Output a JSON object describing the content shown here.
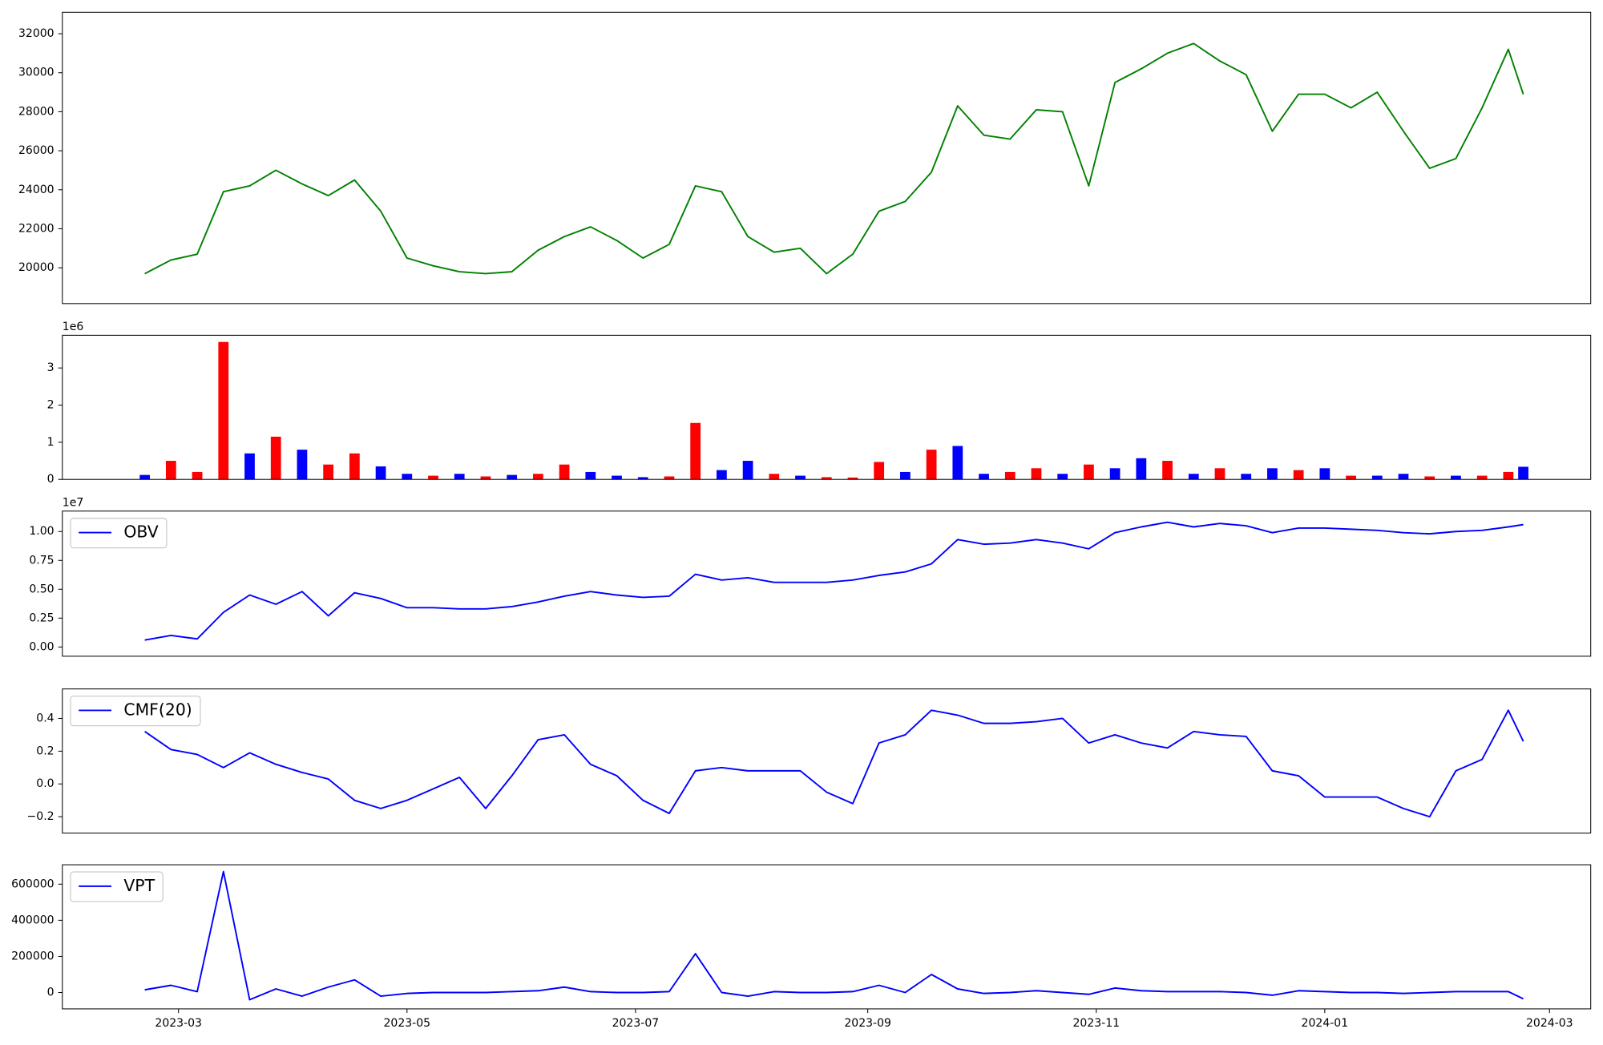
{
  "chart_data": [
    {
      "type": "line",
      "x": [
        "2023-02-20",
        "2023-02-27",
        "2023-03-06",
        "2023-03-13",
        "2023-03-20",
        "2023-03-27",
        "2023-04-03",
        "2023-04-10",
        "2023-04-17",
        "2023-04-24",
        "2023-05-01",
        "2023-05-08",
        "2023-05-15",
        "2023-05-22",
        "2023-05-29",
        "2023-06-05",
        "2023-06-12",
        "2023-06-19",
        "2023-06-26",
        "2023-07-03",
        "2023-07-10",
        "2023-07-17",
        "2023-07-24",
        "2023-07-31",
        "2023-08-07",
        "2023-08-14",
        "2023-08-21",
        "2023-08-28",
        "2023-09-04",
        "2023-09-11",
        "2023-09-18",
        "2023-09-25",
        "2023-10-02",
        "2023-10-09",
        "2023-10-16",
        "2023-10-23",
        "2023-10-30",
        "2023-11-06",
        "2023-11-13",
        "2023-11-20",
        "2023-11-27",
        "2023-12-04",
        "2023-12-11",
        "2023-12-18",
        "2023-12-25",
        "2024-01-01",
        "2024-01-08",
        "2024-01-15",
        "2024-01-22",
        "2024-01-29",
        "2024-02-05",
        "2024-02-12",
        "2024-02-19",
        "2024-02-23"
      ],
      "series": [
        {
          "color": "green",
          "values": [
            19700,
            20400,
            20700,
            23900,
            24200,
            25000,
            24300,
            23700,
            24500,
            22900,
            20500,
            20100,
            19800,
            19700,
            19800,
            20900,
            21600,
            22100,
            21400,
            20500,
            21200,
            24200,
            23900,
            21600,
            20800,
            21000,
            19700,
            20700,
            22900,
            23400,
            24900,
            28300,
            26800,
            26600,
            28100,
            28000,
            24200,
            29500,
            30200,
            31000,
            31500,
            30600,
            29900,
            27000,
            28900,
            28900,
            28200,
            29000,
            27000,
            25100,
            25600,
            28200,
            31200,
            28900
          ]
        }
      ],
      "xlim": [
        "2023-01-29",
        "2024-03-12"
      ],
      "ylim": [
        18165,
        33100
      ],
      "yticks": [
        20000,
        22000,
        24000,
        26000,
        28000,
        30000,
        32000
      ]
    },
    {
      "type": "bar",
      "x": [
        "2023-02-20",
        "2023-02-27",
        "2023-03-06",
        "2023-03-13",
        "2023-03-20",
        "2023-03-27",
        "2023-04-03",
        "2023-04-10",
        "2023-04-17",
        "2023-04-24",
        "2023-05-01",
        "2023-05-08",
        "2023-05-15",
        "2023-05-22",
        "2023-05-29",
        "2023-06-05",
        "2023-06-12",
        "2023-06-19",
        "2023-06-26",
        "2023-07-03",
        "2023-07-10",
        "2023-07-17",
        "2023-07-24",
        "2023-07-31",
        "2023-08-07",
        "2023-08-14",
        "2023-08-21",
        "2023-08-28",
        "2023-09-04",
        "2023-09-11",
        "2023-09-18",
        "2023-09-25",
        "2023-10-02",
        "2023-10-09",
        "2023-10-16",
        "2023-10-23",
        "2023-10-30",
        "2023-11-06",
        "2023-11-13",
        "2023-11-20",
        "2023-11-27",
        "2023-12-04",
        "2023-12-11",
        "2023-12-18",
        "2023-12-25",
        "2024-01-01",
        "2024-01-08",
        "2024-01-15",
        "2024-01-22",
        "2024-01-29",
        "2024-02-05",
        "2024-02-12",
        "2024-02-19",
        "2024-02-23"
      ],
      "series": [
        {
          "values": [
            120000,
            500000,
            200000,
            3700000,
            700000,
            1150000,
            800000,
            400000,
            700000,
            350000,
            150000,
            100000,
            150000,
            80000,
            120000,
            150000,
            400000,
            200000,
            100000,
            60000,
            80000,
            1520000,
            250000,
            500000,
            150000,
            100000,
            60000,
            50000,
            470000,
            200000,
            800000,
            900000,
            150000,
            200000,
            300000,
            150000,
            400000,
            300000,
            570000,
            500000,
            150000,
            300000,
            150000,
            300000,
            250000,
            300000,
            100000,
            100000,
            150000,
            80000,
            100000,
            100000,
            200000,
            340000
          ],
          "colors": [
            "blue",
            "red",
            "red",
            "red",
            "blue",
            "red",
            "blue",
            "red",
            "red",
            "blue",
            "blue",
            "red",
            "blue",
            "red",
            "blue",
            "red",
            "red",
            "blue",
            "blue",
            "blue",
            "red",
            "red",
            "blue",
            "blue",
            "red",
            "blue",
            "red",
            "red",
            "red",
            "blue",
            "red",
            "blue",
            "blue",
            "red",
            "red",
            "blue",
            "red",
            "blue",
            "blue",
            "red",
            "blue",
            "red",
            "blue",
            "blue",
            "red",
            "blue",
            "red",
            "blue",
            "blue",
            "red",
            "blue",
            "red",
            "red",
            "blue"
          ]
        }
      ],
      "offset_label": "1e6",
      "xlim": [
        "2023-01-29",
        "2024-03-12"
      ],
      "ylim": [
        0,
        3880000
      ],
      "yticks": [
        0,
        {
          "value": 1000000,
          "label": "1"
        },
        {
          "value": 2000000,
          "label": "2"
        },
        {
          "value": 3000000,
          "label": "3"
        }
      ]
    },
    {
      "type": "line",
      "x": [
        "2023-02-20",
        "2023-02-27",
        "2023-03-06",
        "2023-03-13",
        "2023-03-20",
        "2023-03-27",
        "2023-04-03",
        "2023-04-10",
        "2023-04-17",
        "2023-04-24",
        "2023-05-01",
        "2023-05-08",
        "2023-05-15",
        "2023-05-22",
        "2023-05-29",
        "2023-06-05",
        "2023-06-12",
        "2023-06-19",
        "2023-06-26",
        "2023-07-03",
        "2023-07-10",
        "2023-07-17",
        "2023-07-24",
        "2023-07-31",
        "2023-08-07",
        "2023-08-14",
        "2023-08-21",
        "2023-08-28",
        "2023-09-04",
        "2023-09-11",
        "2023-09-18",
        "2023-09-25",
        "2023-10-02",
        "2023-10-09",
        "2023-10-16",
        "2023-10-23",
        "2023-10-30",
        "2023-11-06",
        "2023-11-13",
        "2023-11-20",
        "2023-11-27",
        "2023-12-04",
        "2023-12-11",
        "2023-12-18",
        "2023-12-25",
        "2024-01-01",
        "2024-01-08",
        "2024-01-15",
        "2024-01-22",
        "2024-01-29",
        "2024-02-05",
        "2024-02-12",
        "2024-02-19",
        "2024-02-23"
      ],
      "series": [
        {
          "name": "OBV",
          "color": "blue",
          "values": [
            600000,
            1000000,
            700000,
            3000000,
            4500000,
            3700000,
            4800000,
            2700000,
            4700000,
            4200000,
            3400000,
            3400000,
            3300000,
            3300000,
            3500000,
            3900000,
            4400000,
            4800000,
            4500000,
            4300000,
            4400000,
            6300000,
            5800000,
            6000000,
            5600000,
            5600000,
            5600000,
            5800000,
            6200000,
            6500000,
            7200000,
            9300000,
            8900000,
            9000000,
            9300000,
            9000000,
            8500000,
            9900000,
            10400000,
            10800000,
            10400000,
            10700000,
            10500000,
            9900000,
            10300000,
            10300000,
            10200000,
            10100000,
            9900000,
            9800000,
            10000000,
            10100000,
            10400000,
            10600000
          ]
        }
      ],
      "offset_label": "1e7",
      "legend": "upper left",
      "xlim": [
        "2023-01-29",
        "2024-03-12"
      ],
      "ylim": [
        -800000,
        11770000
      ],
      "yticks": [
        {
          "value": 0,
          "label": "0.00"
        },
        {
          "value": 2500000,
          "label": "0.25"
        },
        {
          "value": 5000000,
          "label": "0.50"
        },
        {
          "value": 7500000,
          "label": "0.75"
        },
        {
          "value": 10000000,
          "label": "1.00"
        }
      ]
    },
    {
      "type": "line",
      "x": [
        "2023-02-20",
        "2023-02-27",
        "2023-03-06",
        "2023-03-13",
        "2023-03-20",
        "2023-03-27",
        "2023-04-03",
        "2023-04-10",
        "2023-04-17",
        "2023-04-24",
        "2023-05-01",
        "2023-05-08",
        "2023-05-15",
        "2023-05-22",
        "2023-05-29",
        "2023-06-05",
        "2023-06-12",
        "2023-06-19",
        "2023-06-26",
        "2023-07-03",
        "2023-07-10",
        "2023-07-17",
        "2023-07-24",
        "2023-07-31",
        "2023-08-07",
        "2023-08-14",
        "2023-08-21",
        "2023-08-28",
        "2023-09-04",
        "2023-09-11",
        "2023-09-18",
        "2023-09-25",
        "2023-10-02",
        "2023-10-09",
        "2023-10-16",
        "2023-10-23",
        "2023-10-30",
        "2023-11-06",
        "2023-11-13",
        "2023-11-20",
        "2023-11-27",
        "2023-12-04",
        "2023-12-11",
        "2023-12-18",
        "2023-12-25",
        "2024-01-01",
        "2024-01-08",
        "2024-01-15",
        "2024-01-22",
        "2024-01-29",
        "2024-02-05",
        "2024-02-12",
        "2024-02-19",
        "2024-02-23"
      ],
      "series": [
        {
          "name": "CMF(20)",
          "color": "blue",
          "values": [
            0.32,
            0.21,
            0.18,
            0.1,
            0.19,
            0.12,
            0.07,
            0.03,
            -0.1,
            -0.15,
            -0.1,
            -0.03,
            0.04,
            -0.15,
            0.05,
            0.27,
            0.3,
            0.12,
            0.05,
            -0.1,
            -0.18,
            0.08,
            0.1,
            0.08,
            0.08,
            0.08,
            -0.05,
            -0.12,
            0.25,
            0.3,
            0.45,
            0.42,
            0.37,
            0.37,
            0.38,
            0.4,
            0.25,
            0.3,
            0.25,
            0.22,
            0.32,
            0.3,
            0.29,
            0.08,
            0.05,
            -0.08,
            -0.08,
            -0.08,
            -0.15,
            -0.2,
            0.08,
            0.15,
            0.45,
            0.26
          ]
        }
      ],
      "legend": "upper left",
      "xlim": [
        "2023-01-29",
        "2024-03-12"
      ],
      "ylim": [
        -0.3,
        0.58
      ],
      "yticks": [
        {
          "value": -0.2,
          "label": "−0.2"
        },
        {
          "value": 0,
          "label": "0.0"
        },
        0.2,
        0.4
      ]
    },
    {
      "type": "line",
      "x": [
        "2023-02-20",
        "2023-02-27",
        "2023-03-06",
        "2023-03-13",
        "2023-03-20",
        "2023-03-27",
        "2023-04-03",
        "2023-04-10",
        "2023-04-17",
        "2023-04-24",
        "2023-05-01",
        "2023-05-08",
        "2023-05-15",
        "2023-05-22",
        "2023-05-29",
        "2023-06-05",
        "2023-06-12",
        "2023-06-19",
        "2023-06-26",
        "2023-07-03",
        "2023-07-10",
        "2023-07-17",
        "2023-07-24",
        "2023-07-31",
        "2023-08-07",
        "2023-08-14",
        "2023-08-21",
        "2023-08-28",
        "2023-09-04",
        "2023-09-11",
        "2023-09-18",
        "2023-09-25",
        "2023-10-02",
        "2023-10-09",
        "2023-10-16",
        "2023-10-23",
        "2023-10-30",
        "2023-11-06",
        "2023-11-13",
        "2023-11-20",
        "2023-11-27",
        "2023-12-04",
        "2023-12-11",
        "2023-12-18",
        "2023-12-25",
        "2024-01-01",
        "2024-01-08",
        "2024-01-15",
        "2024-01-22",
        "2024-01-29",
        "2024-02-05",
        "2024-02-12",
        "2024-02-19",
        "2024-02-23"
      ],
      "series": [
        {
          "name": "VPT",
          "color": "blue",
          "values": [
            15000,
            40000,
            5000,
            670000,
            -40000,
            20000,
            -20000,
            30000,
            70000,
            -20000,
            -5000,
            0,
            0,
            0,
            5000,
            10000,
            30000,
            5000,
            0,
            0,
            5000,
            215000,
            0,
            -20000,
            5000,
            0,
            0,
            5000,
            40000,
            0,
            100000,
            20000,
            -5000,
            0,
            10000,
            0,
            -10000,
            25000,
            10000,
            5000,
            5000,
            5000,
            0,
            -15000,
            10000,
            5000,
            0,
            0,
            -5000,
            0,
            5000,
            5000,
            5000,
            -35000
          ]
        }
      ],
      "legend": "upper left",
      "xlim": [
        "2023-01-29",
        "2024-03-12"
      ],
      "ylim": [
        -90600,
        707500
      ],
      "yticks": [
        0,
        200000,
        400000,
        600000
      ],
      "xticks": [
        "2023-03",
        "2023-05",
        "2023-07",
        "2023-09",
        "2023-11",
        "2024-01",
        "2024-03"
      ]
    }
  ]
}
